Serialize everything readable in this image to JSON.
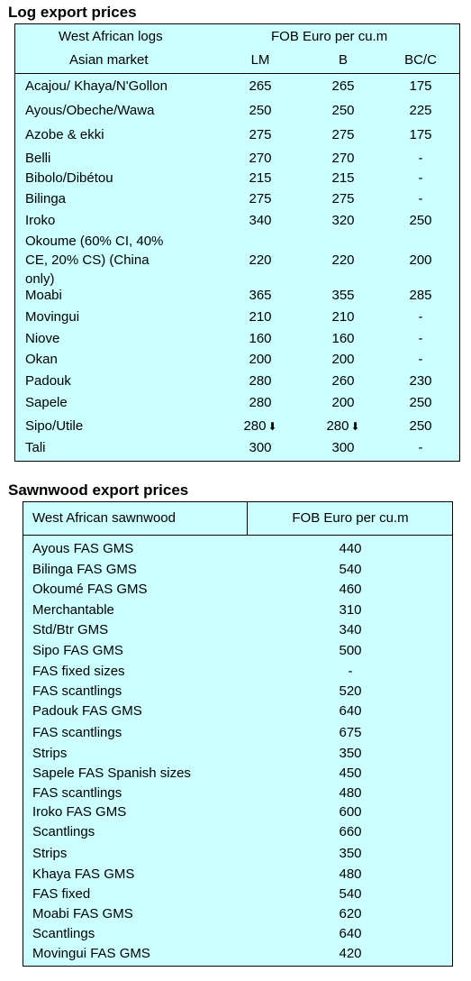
{
  "log": {
    "title": "Log export prices",
    "header": {
      "col1_line1": "West African logs",
      "col1_line2": "Asian market",
      "price_header": "FOB Euro per cu.m",
      "grades": [
        "LM",
        "B",
        "BC/C"
      ]
    },
    "rows": [
      {
        "name": [
          "Acajou/ Khaya/N'Gollon"
        ],
        "lm": "265",
        "b": "265",
        "bc": "175"
      },
      {
        "name": [
          "Ayous/Obeche/Wawa"
        ],
        "lm": "250",
        "b": "250",
        "bc": "225"
      },
      {
        "name": [
          "Azobe & ekki"
        ],
        "lm": "275",
        "b": "275",
        "bc": "175"
      },
      {
        "name": [
          "Belli"
        ],
        "lm": "270",
        "b": "270",
        "bc": "-"
      },
      {
        "name": [
          "Bibolo/Dibétou"
        ],
        "lm": "215",
        "b": "215",
        "bc": "-"
      },
      {
        "name": [
          "Bilinga"
        ],
        "lm": "275",
        "b": "275",
        "bc": "-"
      },
      {
        "name": [
          "Iroko"
        ],
        "lm": "340",
        "b": "320",
        "bc": "250"
      },
      {
        "name": [
          "Okoume (60% CI, 40%",
          "CE, 20% CS) (China",
          "only)"
        ],
        "lm": "220",
        "b": "220",
        "bc": "200"
      },
      {
        "name": [
          "Moabi"
        ],
        "lm": "365",
        "b": "355",
        "bc": "285"
      },
      {
        "name": [
          "Movingui"
        ],
        "lm": "210",
        "b": "210",
        "bc": "-"
      },
      {
        "name": [
          "Niove"
        ],
        "lm": "160",
        "b": "160",
        "bc": "-"
      },
      {
        "name": [
          "Okan"
        ],
        "lm": "200",
        "b": "200",
        "bc": "-"
      },
      {
        "name": [
          "Padouk"
        ],
        "lm": "280",
        "b": "260",
        "bc": "230"
      },
      {
        "name": [
          "Sapele"
        ],
        "lm": "280",
        "b": "200",
        "bc": "250"
      },
      {
        "name": [
          "Sipo/Utile"
        ],
        "lm": "280",
        "b": "280",
        "bc": "250",
        "lm_arrow": "down-arrow-icon",
        "b_arrow": "down-arrow-icon"
      },
      {
        "name": [
          "Tali"
        ],
        "lm": "300",
        "b": "300",
        "bc": "-"
      }
    ]
  },
  "saw": {
    "title": "Sawnwood export prices",
    "header": {
      "col1": "West African sawnwood",
      "col2": "FOB Euro per cu.m"
    },
    "rows": [
      {
        "name": "Ayous FAS GMS",
        "price": "440"
      },
      {
        "name": "Bilinga FAS GMS",
        "price": "540"
      },
      {
        "name": "Okoumé FAS GMS",
        "price": "460"
      },
      {
        "name": "Merchantable",
        "price": "310"
      },
      {
        "name": "Std/Btr GMS",
        "price": "340"
      },
      {
        "name": "Sipo FAS GMS",
        "price": "500"
      },
      {
        "name": "FAS fixed sizes",
        "price": "-"
      },
      {
        "name": "FAS scantlings",
        "price": "520"
      },
      {
        "name": "Padouk FAS GMS",
        "price": "640"
      },
      {
        "name": "FAS scantlings",
        "price": "675"
      },
      {
        "name": "Strips",
        "price": "350"
      },
      {
        "name": "Sapele FAS Spanish sizes",
        "price": "450"
      },
      {
        "name": "FAS scantlings",
        "price": "480"
      },
      {
        "name": "Iroko FAS GMS",
        "price": "600"
      },
      {
        "name": "Scantlings",
        "price": "660"
      },
      {
        "name": "Strips",
        "price": "350"
      },
      {
        "name": "Khaya FAS GMS",
        "price": "480"
      },
      {
        "name": "FAS fixed",
        "price": "540"
      },
      {
        "name": "Moabi FAS GMS",
        "price": "620"
      },
      {
        "name": "Scantlings",
        "price": "640"
      },
      {
        "name": "Movingui FAS GMS",
        "price": "420"
      }
    ]
  }
}
